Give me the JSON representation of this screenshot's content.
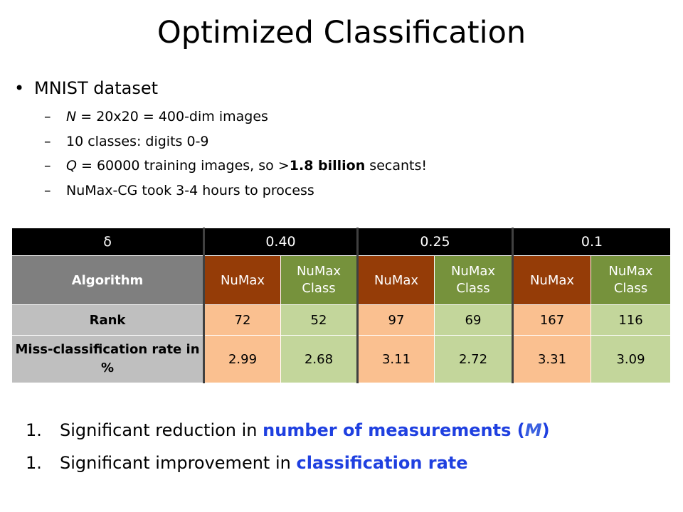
{
  "title": "Optimized Classification",
  "main_bullet": {
    "marker": "•",
    "text": "MNIST dataset"
  },
  "sub_bullets": [
    {
      "dash": "–",
      "italic": "N",
      "text": " = 20x20 = 400-dim images"
    },
    {
      "dash": "–",
      "text": "10 classes: digits 0-9"
    },
    {
      "dash": "–",
      "italic": "Q",
      "pre": " = 60000 training images, so >",
      "bold": "1.8 billion",
      "post": " secants!"
    },
    {
      "dash": "–",
      "text": "NuMax-CG took 3-4 hours to process"
    }
  ],
  "table": {
    "delta_label": "δ",
    "deltas": [
      "0.40",
      "0.25",
      "0.1"
    ],
    "algorithm_label": "Algorithm",
    "algorithms": [
      "NuMax",
      "NuMax Class",
      "NuMax",
      "NuMax Class",
      "NuMax",
      "NuMax Class"
    ],
    "rank_label": "Rank",
    "ranks": [
      "72",
      "52",
      "97",
      "69",
      "167",
      "116"
    ],
    "miss_label": "Miss-classification rate in %",
    "miss_rates": [
      "2.99",
      "2.68",
      "3.11",
      "2.72",
      "3.31",
      "3.09"
    ]
  },
  "conclusions": [
    {
      "num": "1.",
      "pre": "Significant reduction in ",
      "highlight": "number of measurements",
      "post": " (",
      "symbol": "M",
      "close": ")"
    },
    {
      "num": "1.",
      "pre": "Significant improvement in ",
      "highlight": "classification rate"
    }
  ],
  "colors": {
    "numax_header": "#953c07",
    "numax_class_header": "#76923c",
    "numax_value": "#fac090",
    "numax_class_value": "#c3d69b",
    "highlight_text": "#1f40e0"
  }
}
